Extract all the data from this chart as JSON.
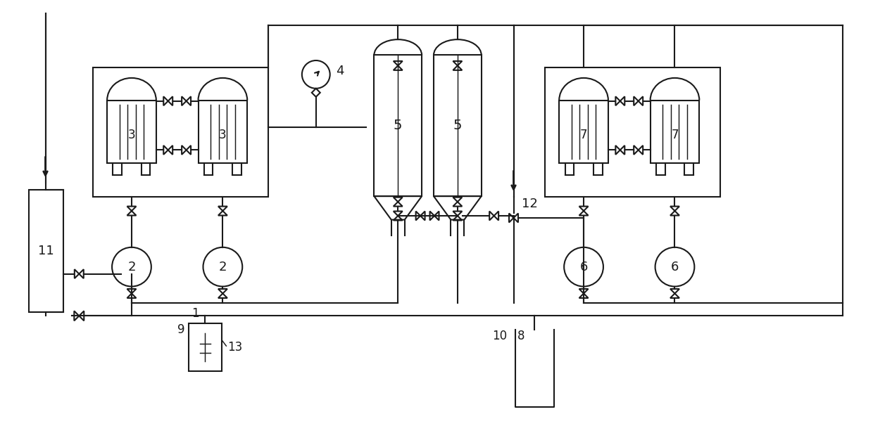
{
  "bg_color": "#ffffff",
  "line_color": "#1a1a1a",
  "lw": 1.5,
  "figsize": [
    12.4,
    6.16
  ],
  "dpi": 100
}
